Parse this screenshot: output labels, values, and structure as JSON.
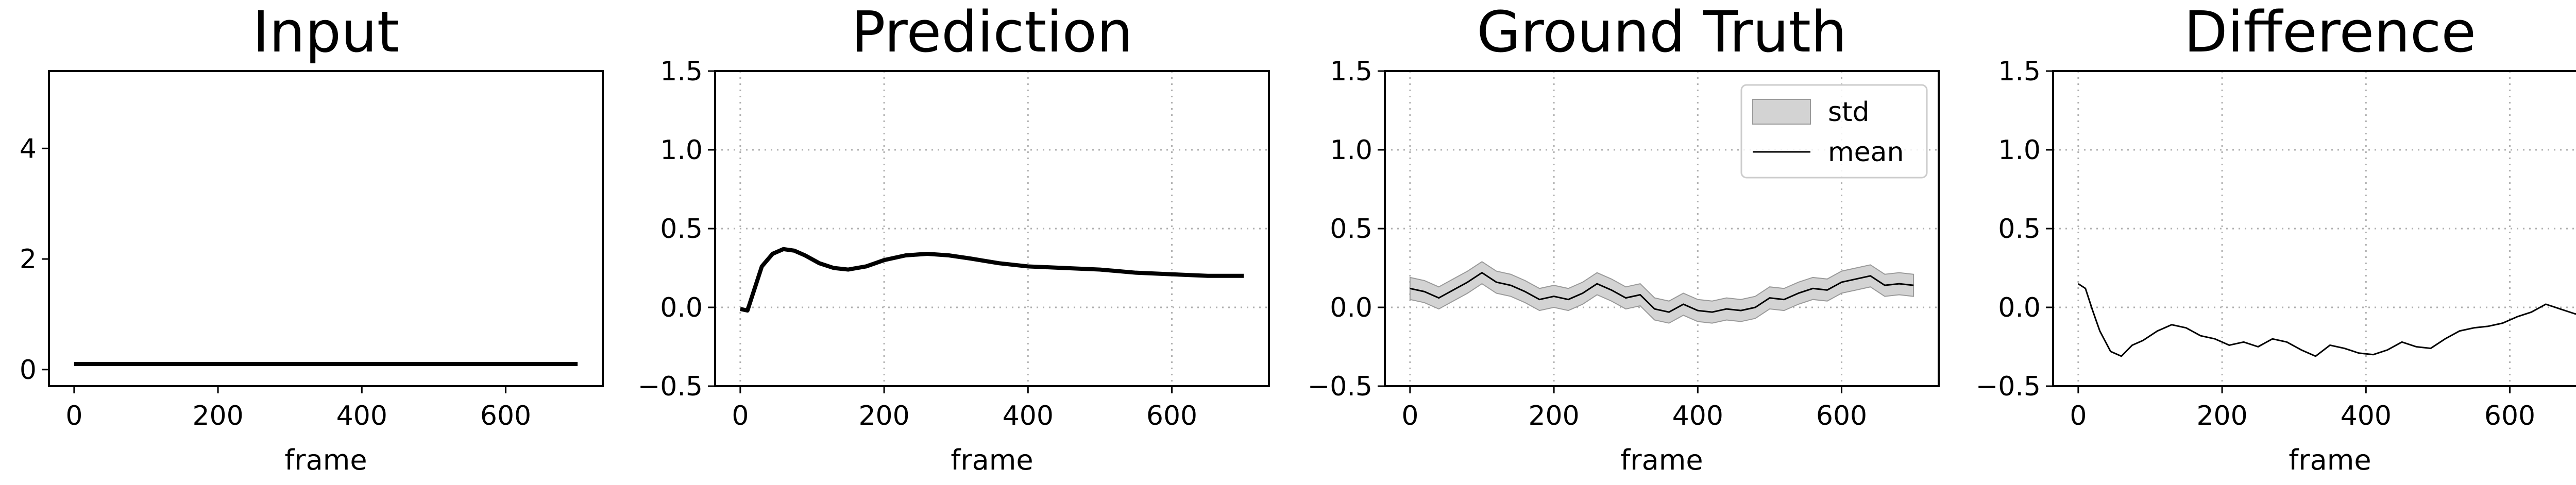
{
  "chart_data": [
    {
      "type": "line",
      "title": "Input",
      "xlabel": "frame",
      "ylabel": "",
      "xlim": [
        -35,
        735
      ],
      "ylim": [
        -0.3,
        5.4
      ],
      "xticks": [
        0,
        200,
        400,
        600
      ],
      "yticks": [
        0,
        2,
        4
      ],
      "grid": false,
      "series": [
        {
          "x": [
            0,
            700
          ],
          "y": [
            0.1,
            0.1
          ],
          "color": "#000000"
        }
      ]
    },
    {
      "type": "line",
      "title": "Prediction",
      "xlabel": "frame",
      "ylabel": "",
      "xlim": [
        -35,
        735
      ],
      "ylim": [
        -0.5,
        1.5
      ],
      "xticks": [
        0,
        200,
        400,
        600
      ],
      "yticks": [
        -0.5,
        0.0,
        0.5,
        1.0,
        1.5
      ],
      "grid": true,
      "series": [
        {
          "x": [
            0,
            10,
            20,
            30,
            45,
            60,
            75,
            90,
            110,
            130,
            150,
            175,
            200,
            230,
            260,
            290,
            320,
            360,
            400,
            450,
            500,
            550,
            600,
            650,
            700
          ],
          "y": [
            -0.01,
            -0.02,
            0.12,
            0.26,
            0.34,
            0.37,
            0.36,
            0.33,
            0.28,
            0.25,
            0.24,
            0.26,
            0.3,
            0.33,
            0.34,
            0.33,
            0.31,
            0.28,
            0.26,
            0.25,
            0.24,
            0.22,
            0.21,
            0.2,
            0.2
          ],
          "color": "#000000"
        }
      ]
    },
    {
      "type": "line",
      "title": "Ground Truth",
      "xlabel": "frame",
      "ylabel": "",
      "xlim": [
        -35,
        735
      ],
      "ylim": [
        -0.5,
        1.5
      ],
      "xticks": [
        0,
        200,
        400,
        600
      ],
      "yticks": [
        -0.5,
        0.0,
        0.5,
        1.0,
        1.5
      ],
      "grid": true,
      "legend": {
        "position": "top-right",
        "entries": [
          "std",
          "mean"
        ]
      },
      "series": [
        {
          "name": "mean",
          "x": [
            0,
            20,
            40,
            60,
            80,
            100,
            120,
            140,
            160,
            180,
            200,
            220,
            240,
            260,
            280,
            300,
            320,
            340,
            360,
            380,
            400,
            420,
            440,
            460,
            480,
            500,
            520,
            540,
            560,
            580,
            600,
            620,
            640,
            660,
            680,
            700
          ],
          "y": [
            0.12,
            0.1,
            0.06,
            0.11,
            0.16,
            0.22,
            0.16,
            0.14,
            0.1,
            0.05,
            0.07,
            0.05,
            0.09,
            0.15,
            0.11,
            0.06,
            0.08,
            -0.01,
            -0.03,
            0.02,
            -0.02,
            -0.03,
            -0.01,
            -0.02,
            0.0,
            0.06,
            0.05,
            0.09,
            0.12,
            0.11,
            0.16,
            0.18,
            0.2,
            0.14,
            0.15,
            0.14
          ],
          "std": 0.07,
          "color": "#000000"
        }
      ]
    },
    {
      "type": "line",
      "title": "Difference",
      "xlabel": "frame",
      "ylabel": "",
      "xlim": [
        -35,
        735
      ],
      "ylim": [
        -0.5,
        1.5
      ],
      "xticks": [
        0,
        200,
        400,
        600
      ],
      "yticks": [
        -0.5,
        0.0,
        0.5,
        1.0,
        1.5
      ],
      "grid": true,
      "series": [
        {
          "x": [
            0,
            10,
            20,
            30,
            45,
            60,
            75,
            90,
            110,
            130,
            150,
            170,
            190,
            210,
            230,
            250,
            270,
            290,
            310,
            330,
            350,
            370,
            390,
            410,
            430,
            450,
            470,
            490,
            510,
            530,
            550,
            570,
            590,
            610,
            630,
            650,
            670,
            690,
            700
          ],
          "y": [
            0.15,
            0.12,
            -0.02,
            -0.15,
            -0.28,
            -0.31,
            -0.24,
            -0.21,
            -0.15,
            -0.11,
            -0.13,
            -0.18,
            -0.2,
            -0.24,
            -0.22,
            -0.25,
            -0.2,
            -0.22,
            -0.27,
            -0.31,
            -0.24,
            -0.26,
            -0.29,
            -0.3,
            -0.27,
            -0.22,
            -0.25,
            -0.26,
            -0.2,
            -0.15,
            -0.13,
            -0.12,
            -0.1,
            -0.06,
            -0.03,
            0.02,
            -0.01,
            -0.04,
            -0.05
          ],
          "color": "#000000"
        }
      ]
    }
  ]
}
